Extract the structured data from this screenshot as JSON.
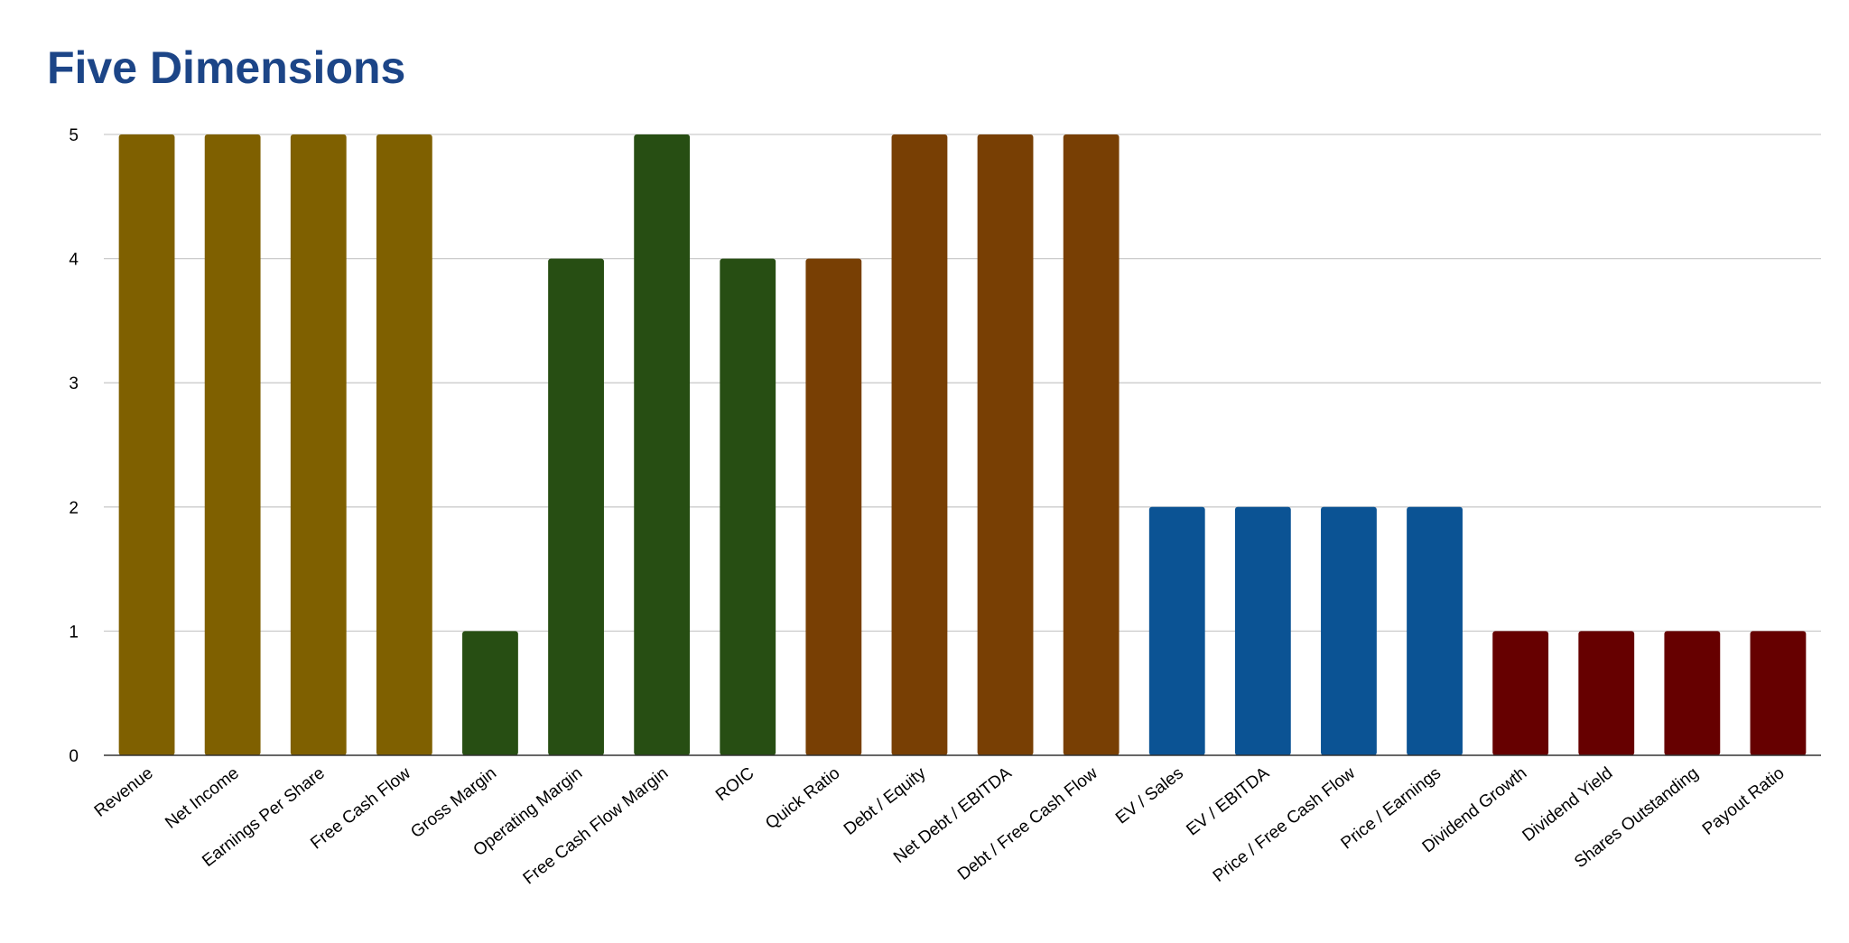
{
  "chart_data": {
    "type": "bar",
    "title": "Five Dimensions",
    "xlabel": "",
    "ylabel": "",
    "ylim": [
      0,
      5
    ],
    "yticks": [
      "0",
      "1",
      "2",
      "3",
      "4",
      "5"
    ],
    "grid": true,
    "legend": "none",
    "categories": [
      "Revenue",
      "Net Income",
      "Earnings Per Share",
      "Free Cash Flow",
      "Gross Margin",
      "Operating Margin",
      "Free Cash Flow Margin",
      "ROIC",
      "Quick Ratio",
      "Debt / Equity",
      "Net Debt / EBITDA",
      "Debt / Free Cash Flow",
      "EV / Sales",
      "EV / EBITDA",
      "Price / Free Cash Flow",
      "Price / Earnings",
      "Dividend Growth",
      "Dividend Yield",
      "Shares Outstanding",
      "Payout Ratio"
    ],
    "values": [
      5,
      5,
      5,
      5,
      1,
      4,
      5,
      4,
      4,
      5,
      5,
      5,
      2,
      2,
      2,
      2,
      1,
      1,
      1,
      1
    ],
    "colors": [
      "#7f6000",
      "#7f6000",
      "#7f6000",
      "#7f6000",
      "#274e13",
      "#274e13",
      "#274e13",
      "#274e13",
      "#783f04",
      "#783f04",
      "#783f04",
      "#783f04",
      "#0b5394",
      "#0b5394",
      "#0b5394",
      "#0b5394",
      "#660000",
      "#660000",
      "#660000",
      "#660000"
    ],
    "title_color": "#1c4587",
    "grid_color": "#cccccc",
    "axis_color": "#333333"
  }
}
